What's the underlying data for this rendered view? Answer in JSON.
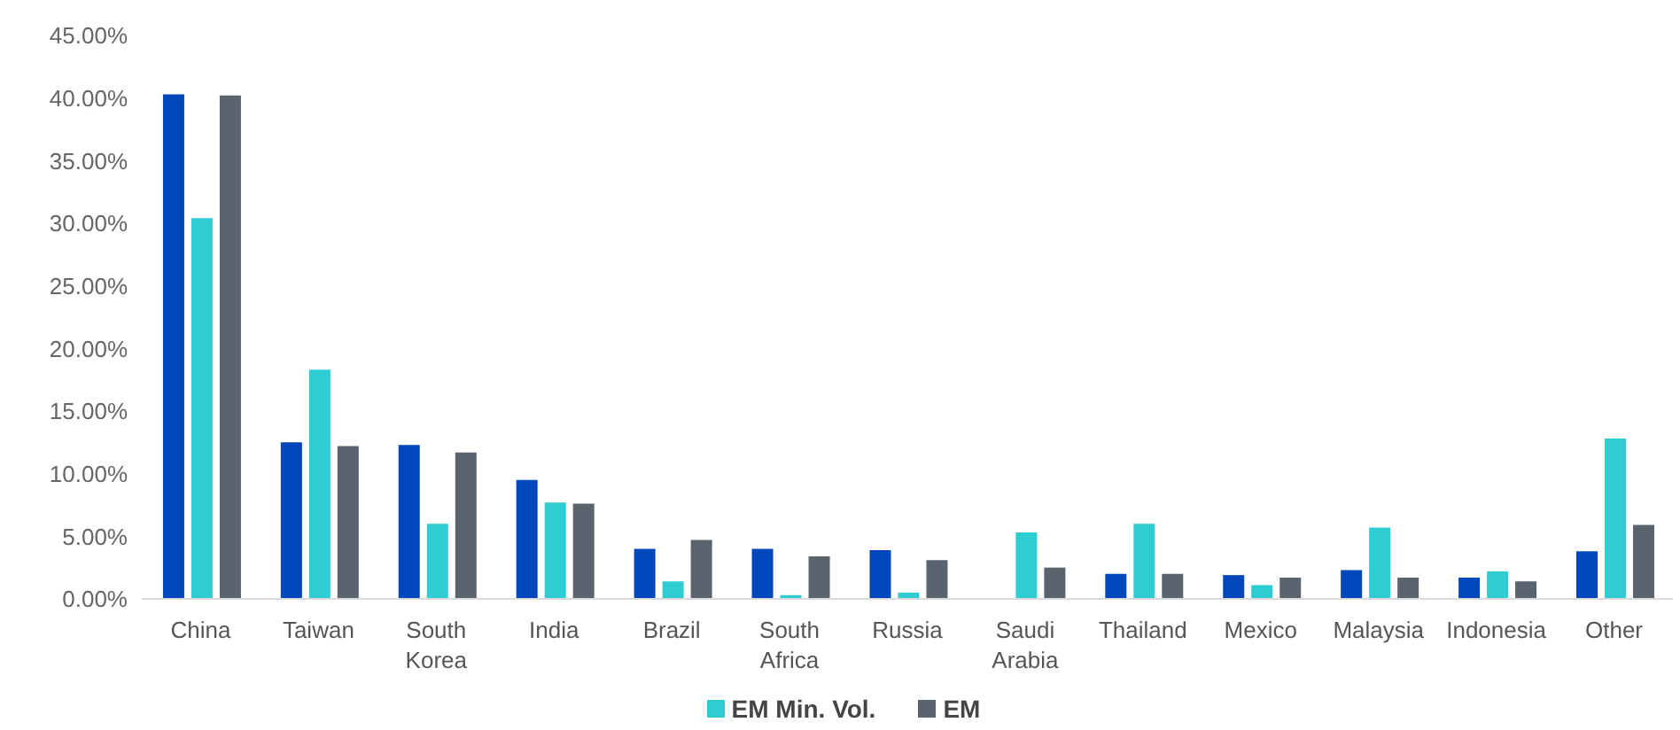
{
  "chart_data": {
    "type": "bar",
    "categories": [
      "China",
      "Taiwan",
      "South Korea",
      "India",
      "Brazil",
      "South Africa",
      "Russia",
      "Saudi Arabia",
      "Thailand",
      "Mexico",
      "Malaysia",
      "Indonesia",
      "Other"
    ],
    "series": [
      {
        "color": "#0047bb",
        "values": [
          40.3,
          12.5,
          12.3,
          9.5,
          4.0,
          4.0,
          3.9,
          null,
          2.0,
          1.9,
          2.3,
          1.7,
          3.8
        ]
      },
      {
        "name": "EM Min. Vol.",
        "color": "#2ecdd3",
        "values": [
          30.4,
          18.3,
          6.0,
          7.7,
          1.4,
          0.3,
          0.5,
          5.3,
          6.0,
          1.1,
          5.7,
          2.2,
          12.8
        ]
      },
      {
        "name": "EM",
        "color": "#5a646e",
        "values": [
          40.2,
          12.2,
          11.7,
          7.6,
          4.7,
          3.4,
          3.1,
          2.5,
          2.0,
          1.7,
          1.7,
          1.4,
          5.9
        ]
      }
    ],
    "ylim": [
      0,
      45
    ],
    "yticks": [
      {
        "value": 0,
        "label": "0.00%"
      },
      {
        "value": 5,
        "label": "5.00%"
      },
      {
        "value": 10,
        "label": "10.00%"
      },
      {
        "value": 15,
        "label": "15.00%"
      },
      {
        "value": 20,
        "label": "20.00%"
      },
      {
        "value": 25,
        "label": "25.00%"
      },
      {
        "value": 30,
        "label": "30.00%"
      },
      {
        "value": 35,
        "label": "35.00%"
      },
      {
        "value": 40,
        "label": "40.00%"
      },
      {
        "value": 45,
        "label": "45.00%"
      }
    ],
    "grid": false,
    "legend": "bottom"
  }
}
